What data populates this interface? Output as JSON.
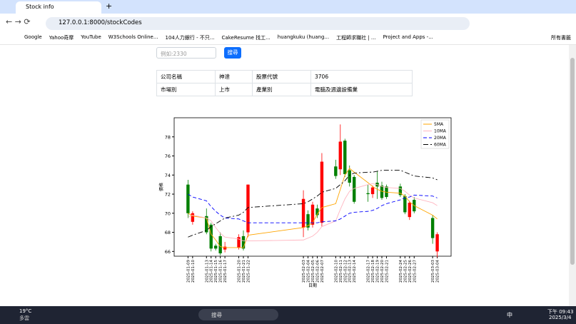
{
  "browser": {
    "tab_title": "Stock info",
    "url": "127.0.0.1:8000/stockCodes",
    "bookmarks": [
      "Google",
      "Yahoo奇摩",
      "YouTube",
      "W3Schools Online...",
      "104人力銀行 - 不只...",
      "CakeResume 找工...",
      "huangkuku (huang...",
      "工程師求職社 | ...",
      "Project and Apps -..."
    ],
    "all_bookmarks": "所有書籤"
  },
  "form": {
    "placeholder": "例如:2330",
    "button": "搜尋"
  },
  "table": {
    "rows": [
      [
        "公司名稱",
        "神達",
        "股票代號",
        "3706"
      ],
      [
        "市場別",
        "上市",
        "產業別",
        "電腦及週邊設備業"
      ]
    ]
  },
  "chart_data": {
    "type": "candlestick",
    "xlabel": "日期",
    "ylabel": "價格",
    "x": [
      "2025-01-09",
      "2025-01-10",
      "2025-01-13",
      "2025-01-14",
      "2025-01-15",
      "2025-01-16",
      "2025-01-17",
      "2025-01-20",
      "2025-01-21",
      "2025-01-22",
      "2025-02-03",
      "2025-02-04",
      "2025-02-05",
      "2025-02-06",
      "2025-02-07",
      "2025-02-10",
      "2025-02-11",
      "2025-02-12",
      "2025-02-13",
      "2025-02-14",
      "2025-02-17",
      "2025-02-18",
      "2025-02-19",
      "2025-02-20",
      "2025-02-21",
      "2025-02-24",
      "2025-02-25",
      "2025-02-26",
      "2025-02-27",
      "2025-03-03",
      "2025-03-04"
    ],
    "open": [
      73,
      69.1,
      69.7,
      68.8,
      66.6,
      67.6,
      66.2,
      66.4,
      67.6,
      68,
      68.5,
      69.9,
      68.8,
      70.5,
      69,
      74.9,
      74.6,
      77.6,
      74.5,
      73.8,
      72.1,
      72,
      73.2,
      72.9,
      72.8,
      72.8,
      71.8,
      69.6,
      71.4,
      69.5,
      66
    ],
    "high": [
      73.5,
      70.2,
      70.5,
      69,
      66.8,
      68,
      67,
      67.8,
      68.2,
      73,
      72.4,
      70.3,
      71.2,
      70.9,
      76.3,
      75.6,
      79.3,
      77.8,
      75,
      74,
      73,
      72.9,
      74.4,
      73.3,
      73,
      73.1,
      72,
      71.3,
      71.7,
      69.8,
      68
    ],
    "low": [
      69.5,
      68.8,
      67.8,
      66,
      66.1,
      65.6,
      65.9,
      66.2,
      66.1,
      67.5,
      67.5,
      68.2,
      68.5,
      69.5,
      68.6,
      73.6,
      74,
      73.8,
      72.8,
      71,
      71.2,
      71.6,
      71.5,
      71.4,
      71.5,
      71.7,
      69.9,
      69.3,
      70,
      66.8,
      65.4
    ],
    "close": [
      70,
      70,
      68,
      66.3,
      66.3,
      65.8,
      66.5,
      67.5,
      66.3,
      73,
      71.5,
      68.5,
      70.9,
      69.8,
      75.4,
      73.9,
      77.5,
      74.1,
      73.2,
      71.2,
      72,
      72.7,
      72.8,
      71.6,
      71.7,
      71.9,
      70.1,
      71.1,
      70.2,
      67.4,
      67.8
    ],
    "up_color": "#ff0000",
    "down_color": "#008000",
    "series": [
      {
        "name": "5MA",
        "color": "#ffa500",
        "dash": "none",
        "values": [
          70,
          69.7,
          69.5,
          67.8,
          67.2,
          66.5,
          66.4,
          66.4,
          66.4,
          67.7,
          68.5,
          68.7,
          69,
          69.9,
          70.6,
          71,
          72.5,
          74,
          74.7,
          74.3,
          73.2,
          72.8,
          72.5,
          72.3,
          72.2,
          72.1,
          71.8,
          71.2,
          70.8,
          69.8,
          69.4
        ]
      },
      {
        "name": "10MA",
        "color": "#ffb6c1",
        "dash": "none",
        "values": [
          69.6,
          69.8,
          69.5,
          69.2,
          68.5,
          67.9,
          67.5,
          67.3,
          67.1,
          67.1,
          67.2,
          67.4,
          67.6,
          68,
          68.6,
          69.2,
          70.4,
          71.5,
          72.3,
          72.6,
          73,
          73.1,
          73,
          72.8,
          72.7,
          72.6,
          72.3,
          71.9,
          71.6,
          71.1,
          70.8
        ]
      },
      {
        "name": "20MA",
        "color": "#0000ff",
        "dash": "5 3",
        "values": [
          72,
          71.7,
          71.3,
          70.7,
          70.2,
          69.8,
          69.5,
          69.4,
          69.2,
          69,
          69,
          69,
          69,
          69,
          69.1,
          69.2,
          69.4,
          69.7,
          70,
          70.1,
          70.2,
          70.3,
          70.5,
          70.8,
          71,
          71.4,
          71.6,
          71.7,
          71.9,
          71.8,
          71.6
        ]
      },
      {
        "name": "60MA",
        "color": "#000000",
        "dash": "7 3 2 3",
        "values": [
          67.5,
          67.7,
          68.2,
          68.6,
          68.9,
          69.2,
          69.5,
          69.8,
          70.1,
          70.6,
          71,
          71.2,
          71.5,
          71.8,
          72.2,
          72.6,
          73,
          73.4,
          74,
          74.2,
          74.3,
          74.3,
          74.4,
          74.5,
          74.5,
          74.5,
          74.3,
          74.1,
          73.9,
          73.7,
          73.5
        ]
      }
    ],
    "xlim": [
      "2025-01-06",
      "2025-03-07"
    ],
    "ylim": [
      65.5,
      80
    ],
    "yticks": [
      66,
      68,
      70,
      72,
      74,
      76,
      78
    ],
    "legend": "upper right"
  },
  "taskbar": {
    "temp": "19°C",
    "weather": "多雲",
    "search": "搜尋",
    "ime": "中",
    "time": "下午 09:43",
    "date": "2025/3/4"
  }
}
